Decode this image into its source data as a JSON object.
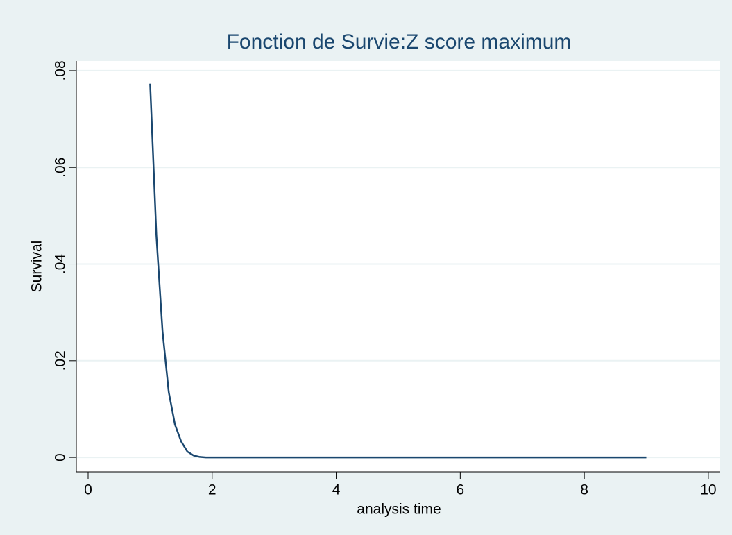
{
  "chart_data": {
    "type": "line",
    "title": "Fonction de Survie:Z score maximum",
    "xlabel": "analysis time",
    "ylabel": "Survival",
    "x": [
      1.0,
      1.1,
      1.2,
      1.3,
      1.4,
      1.5,
      1.6,
      1.7,
      1.8,
      1.9,
      2.0,
      9.0
    ],
    "values": [
      0.0773,
      0.046,
      0.026,
      0.0135,
      0.0068,
      0.0033,
      0.0012,
      0.0004,
      0.0001,
      0,
      0,
      0
    ],
    "color": "#1a476f",
    "xlim": [
      -0.19,
      10.18
    ],
    "ylim": [
      -0.003,
      0.082
    ],
    "xticks": [
      0,
      2,
      4,
      6,
      8,
      10
    ],
    "yticks": [
      0,
      {
        "value": 0.02,
        "label": ".02"
      },
      {
        "value": 0.04,
        "label": ".04"
      },
      {
        "value": 0.06,
        "label": ".06"
      },
      {
        "value": 0.08,
        "label": ".08"
      }
    ],
    "grid": true
  }
}
